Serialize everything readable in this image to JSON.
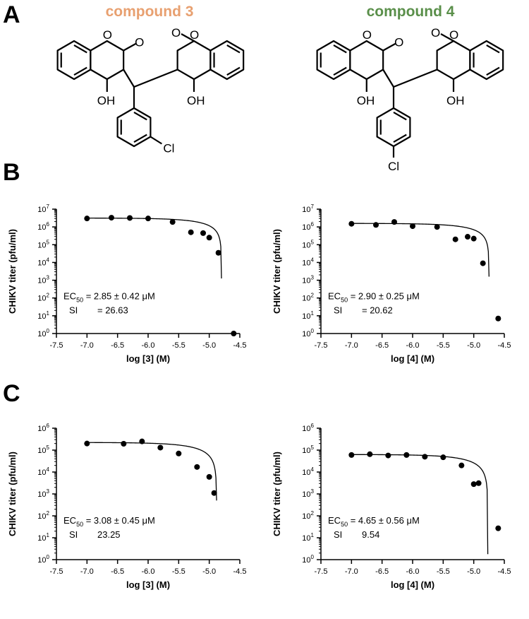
{
  "panels": {
    "A": "A",
    "B": "B",
    "C": "C"
  },
  "compounds": [
    {
      "label": "compound 3",
      "color": "#e8a070",
      "substituent": "Cl",
      "oh": "OH"
    },
    {
      "label": "compound 4",
      "color": "#5a8f4a",
      "substituent": "Cl",
      "oh": "OH"
    }
  ],
  "colors": {
    "points": "#000000",
    "curve": "#000000",
    "axis": "#000000"
  },
  "chart_data": [
    {
      "id": "B-left",
      "type": "scatter",
      "xlabel": "log [3] (M)",
      "ylabel": "CHIKV titer (pfu/ml)",
      "xlim": [
        -7.5,
        -4.5
      ],
      "ylim_log10": [
        0,
        7
      ],
      "yscale": "log",
      "xticks": [
        "-7.5",
        "-7.0",
        "-6.5",
        "-6.0",
        "-5.5",
        "-5.0",
        "-4.5"
      ],
      "ytick_exponents": [
        0,
        1,
        2,
        3,
        4,
        5,
        6,
        7
      ],
      "x": [
        -7.0,
        -6.6,
        -6.3,
        -6.0,
        -5.6,
        -5.3,
        -5.1,
        -5.0,
        -4.85,
        -4.6
      ],
      "y": [
        3000000,
        3300000,
        3200000,
        3000000,
        1900000,
        500000,
        450000,
        250000,
        35000,
        1
      ],
      "fit_curve": {
        "top_log10": 6.5,
        "x_cutoff": -4.8,
        "bottom_log10": 3.1
      },
      "annotation": {
        "ec50_prefix": "EC",
        "ec50_sub": "50",
        "ec50_value": " = 2.85 ± 0.42 μM",
        "si_label": "SI",
        "si_value": "= 26.63"
      }
    },
    {
      "id": "B-right",
      "type": "scatter",
      "xlabel": "log [4] (M)",
      "ylabel": "CHIKV titer (pfu/ml)",
      "xlim": [
        -7.5,
        -4.5
      ],
      "ylim_log10": [
        0,
        7
      ],
      "yscale": "log",
      "xticks": [
        "-7.5",
        "-7.0",
        "-6.5",
        "-6.0",
        "-5.5",
        "-5.0",
        "-4.5"
      ],
      "ytick_exponents": [
        0,
        1,
        2,
        3,
        4,
        5,
        6,
        7
      ],
      "x": [
        -7.0,
        -6.6,
        -6.3,
        -6.0,
        -5.6,
        -5.3,
        -5.1,
        -5.0,
        -4.85,
        -4.6
      ],
      "y": [
        1500000,
        1300000,
        1900000,
        1100000,
        1000000,
        200000,
        280000,
        220000,
        9000,
        7
      ],
      "fit_curve": {
        "top_log10": 6.2,
        "x_cutoff": -4.75,
        "bottom_log10": 3.2
      },
      "annotation": {
        "ec50_prefix": "EC",
        "ec50_sub": "50",
        "ec50_value": " = 2.90 ± 0.25 μM",
        "si_label": "SI",
        "si_value": "= 20.62"
      }
    },
    {
      "id": "C-left",
      "type": "scatter",
      "xlabel": "log [3] (M)",
      "ylabel": "CHIKV titer (pfu/ml)",
      "xlim": [
        -7.5,
        -4.5
      ],
      "ylim_log10": [
        0,
        6
      ],
      "yscale": "log",
      "xticks": [
        "-7.5",
        "-7.0",
        "-6.5",
        "-6.0",
        "-5.5",
        "-5.0",
        "-4.5"
      ],
      "ytick_exponents": [
        0,
        1,
        2,
        3,
        4,
        5,
        6
      ],
      "x": [
        -7.0,
        -6.4,
        -6.1,
        -5.8,
        -5.5,
        -5.2,
        -5.0,
        -4.92
      ],
      "y": [
        200000,
        195000,
        250000,
        130000,
        70000,
        17000,
        6000,
        1100
      ],
      "fit_curve": {
        "top_log10": 5.35,
        "x_cutoff": -4.88,
        "bottom_log10": 2.7
      },
      "annotation": {
        "ec50_prefix": "EC",
        "ec50_sub": "50",
        "ec50_value": " = 3.08 ± 0.45 μM",
        "si_label": "SI",
        "si_value": "23.25"
      }
    },
    {
      "id": "C-right",
      "type": "scatter",
      "xlabel": "log [4] (M)",
      "ylabel": "CHIKV titer (pfu/ml)",
      "xlim": [
        -7.5,
        -4.5
      ],
      "ylim_log10": [
        0,
        6
      ],
      "yscale": "log",
      "xticks": [
        "-7.5",
        "-7.0",
        "-6.5",
        "-6.0",
        "-5.5",
        "-5.0",
        "-4.5"
      ],
      "ytick_exponents": [
        0,
        1,
        2,
        3,
        4,
        5,
        6
      ],
      "x": [
        -7.0,
        -6.7,
        -6.4,
        -6.1,
        -5.8,
        -5.5,
        -5.2,
        -5.0,
        -4.92,
        -4.6
      ],
      "y": [
        60000,
        65000,
        57000,
        60000,
        50000,
        47000,
        20000,
        2800,
        3100,
        27
      ],
      "fit_curve": {
        "top_log10": 4.8,
        "x_cutoff": -4.77,
        "bottom_log10": 0.25
      },
      "annotation": {
        "ec50_prefix": "EC",
        "ec50_sub": "50",
        "ec50_value": " = 4.65 ± 0.56 μM",
        "si_label": "SI",
        "si_value": "9.54"
      }
    }
  ]
}
